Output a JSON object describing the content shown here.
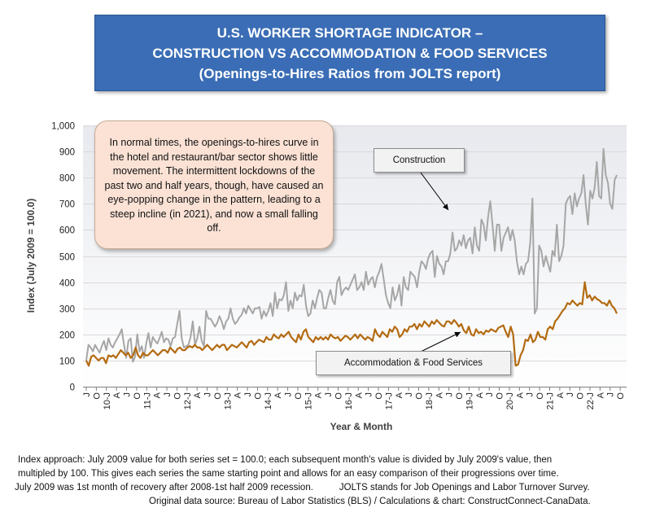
{
  "chart_data": {
    "type": "line",
    "title": [
      "U.S. WORKER SHORTAGE INDICATOR –",
      "CONSTRUCTION VS ACCOMMODATION & FOOD SERVICES",
      "(Openings-to-Hires Ratios from JOLTS report)"
    ],
    "xlabel": "Year & Month",
    "ylabel": "Index (July 2009 = 100.0)",
    "ylim": [
      0,
      1000
    ],
    "yticks": [
      0,
      100,
      200,
      300,
      400,
      500,
      600,
      700,
      800,
      900,
      1000
    ],
    "ytick_labels": [
      "0",
      "100",
      "200",
      "300",
      "400",
      "500",
      "600",
      "700",
      "800",
      "900",
      "1,000"
    ],
    "x_start": "2009-07",
    "x_end": "2022-10",
    "x_tick_labels": [
      "J",
      "O",
      "10-J",
      "A",
      "J",
      "O",
      "11-J",
      "A",
      "J",
      "O",
      "12-J",
      "A",
      "J",
      "O",
      "13-J",
      "A",
      "J",
      "O",
      "14-J",
      "A",
      "J",
      "O",
      "15-J",
      "A",
      "J",
      "O",
      "16-J",
      "A",
      "J",
      "O",
      "17-J",
      "A",
      "J",
      "O",
      "18-J",
      "A",
      "J",
      "O",
      "19-J",
      "A",
      "J",
      "O",
      "20-J",
      "A",
      "J",
      "O",
      "21-J",
      "A",
      "J",
      "O",
      "22-J",
      "A",
      "J",
      "O"
    ],
    "grid": "horizontal",
    "series": [
      {
        "name": "Construction",
        "color": "#a6a6a6",
        "values": [
          100,
          160,
          150,
          135,
          160,
          145,
          130,
          155,
          175,
          140,
          185,
          160,
          150,
          170,
          185,
          200,
          220,
          160,
          110,
          175,
          185,
          95,
          115,
          200,
          135,
          155,
          110,
          165,
          205,
          150,
          190,
          175,
          165,
          185,
          210,
          170,
          185,
          180,
          155,
          185,
          190,
          240,
          290,
          185,
          150,
          155,
          160,
          190,
          250,
          160,
          185,
          230,
          175,
          155,
          290,
          260,
          260,
          245,
          230,
          245,
          270,
          250,
          220,
          250,
          260,
          300,
          260,
          240,
          250,
          265,
          275,
          300,
          280,
          310,
          295,
          280,
          300,
          300,
          305,
          260,
          290,
          270,
          290,
          320,
          270,
          360,
          300,
          335,
          330,
          350,
          400,
          290,
          330,
          300,
          360,
          330,
          350,
          345,
          390,
          310,
          270,
          280,
          330,
          300,
          340,
          370,
          360,
          300,
          300,
          340,
          370,
          330,
          315,
          400,
          420,
          350,
          370,
          380,
          370,
          390,
          410,
          430,
          370,
          380,
          400,
          370,
          440,
          390,
          410,
          420,
          380,
          420,
          440,
          470,
          410,
          350,
          320,
          300,
          380,
          330,
          350,
          390,
          310,
          420,
          380,
          370,
          440,
          430,
          420,
          380,
          440,
          480,
          470,
          450,
          490,
          510,
          520,
          420,
          500,
          470,
          460,
          430,
          480,
          480,
          510,
          590,
          520,
          530,
          560,
          540,
          580,
          530,
          560,
          570,
          510,
          610,
          540,
          520,
          640,
          620,
          560,
          650,
          710,
          620,
          520,
          620,
          620,
          520,
          570,
          590,
          610,
          560,
          600,
          560,
          480,
          430,
          460,
          430,
          470,
          480,
          550,
          720,
          280,
          300,
          540,
          520,
          460,
          500,
          470,
          440,
          520,
          500,
          620,
          480,
          500,
          540,
          700,
          720,
          730,
          660,
          740,
          690,
          720,
          740,
          810,
          700,
          620,
          750,
          720,
          760,
          860,
          730,
          720,
          910,
          810,
          780,
          700,
          680,
          790,
          810
        ]
      },
      {
        "name": "Accommodation & Food Services",
        "color": "#b36b12",
        "values": [
          100,
          80,
          115,
          120,
          110,
          100,
          110,
          110,
          90,
          120,
          115,
          120,
          110,
          125,
          140,
          130,
          120,
          130,
          110,
          120,
          150,
          120,
          110,
          130,
          120,
          120,
          130,
          140,
          130,
          120,
          130,
          140,
          140,
          130,
          150,
          140,
          130,
          145,
          150,
          140,
          140,
          150,
          155,
          150,
          160,
          150,
          150,
          140,
          150,
          160,
          150,
          140,
          150,
          160,
          150,
          160,
          160,
          140,
          150,
          160,
          155,
          150,
          160,
          170,
          160,
          150,
          170,
          175,
          160,
          170,
          180,
          175,
          170,
          190,
          180,
          180,
          200,
          190,
          185,
          200,
          190,
          200,
          210,
          190,
          180,
          170,
          200,
          180,
          210,
          220,
          190,
          180,
          170,
          190,
          180,
          190,
          180,
          190,
          180,
          200,
          190,
          185,
          190,
          175,
          185,
          195,
          190,
          180,
          190,
          200,
          185,
          200,
          190,
          180,
          190,
          185,
          175,
          220,
          200,
          190,
          210,
          200,
          190,
          220,
          210,
          230,
          220,
          190,
          200,
          220,
          210,
          230,
          230,
          240,
          220,
          240,
          230,
          250,
          240,
          230,
          250,
          240,
          255,
          245,
          235,
          230,
          250,
          250,
          240,
          255,
          245,
          230,
          240,
          215,
          205,
          230,
          200,
          195,
          220,
          205,
          210,
          200,
          215,
          210,
          220,
          215,
          210,
          225,
          230,
          235,
          210,
          190,
          230,
          200,
          80,
          85,
          120,
          140,
          180,
          175,
          200,
          170,
          180,
          210,
          190,
          190,
          180,
          220,
          230,
          220,
          250,
          260,
          275,
          290,
          300,
          320,
          315,
          330,
          320,
          310,
          320,
          315,
          400,
          340,
          350,
          330,
          345,
          335,
          330,
          320,
          320,
          310,
          330,
          310,
          300,
          280
        ]
      }
    ],
    "annotations": [
      "In normal times, the openings-to-hires curve in the hotel and restaurant/bar sector shows little movement. The intermittent lockdowns of the past two and half years, though, have caused an eye-popping change in the pattern, leading to a steep incline (in 2021), and now a small falling off."
    ]
  },
  "footnotes": {
    "line1": "Index approach: July 2009 value for both series set = 100.0; each subsequent month's value is divided by July 2009's value, then",
    "line2": "multipled by 100. This gives each series the same starting point and allows for an easy comparison of their progressions over time.",
    "line3a": "July 2009 was 1st month of recovery after 2008-1st half 2009 recession.",
    "line3b": "JOLTS stands for Job Openings and Labor Turnover Survey.",
    "line4": "Original data source: Bureau of Labor Statistics (BLS) / Calculations & chart: ConstructConnect-CanaData."
  }
}
